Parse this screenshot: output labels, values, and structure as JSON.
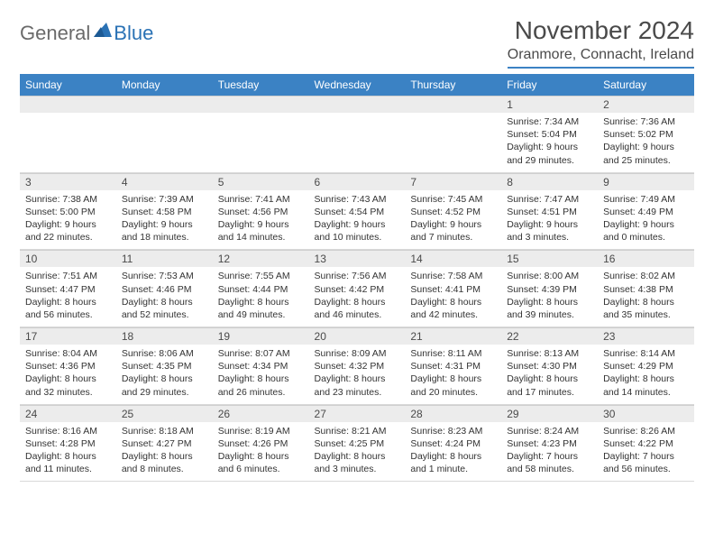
{
  "logo": {
    "general": "General",
    "blue": "Blue"
  },
  "title": "November 2024",
  "location": "Oranmore, Connacht, Ireland",
  "colors": {
    "header_bg": "#3b82c4",
    "header_text": "#ffffff",
    "daynum_bg": "#ececec",
    "body_text": "#333333",
    "title_text": "#4a4a4a",
    "logo_gray": "#6a6a6a",
    "logo_blue": "#2a72b5"
  },
  "weekdays": [
    "Sunday",
    "Monday",
    "Tuesday",
    "Wednesday",
    "Thursday",
    "Friday",
    "Saturday"
  ],
  "weeks": [
    [
      null,
      null,
      null,
      null,
      null,
      {
        "n": "1",
        "sr": "7:34 AM",
        "ss": "5:04 PM",
        "dl": "9 hours and 29 minutes."
      },
      {
        "n": "2",
        "sr": "7:36 AM",
        "ss": "5:02 PM",
        "dl": "9 hours and 25 minutes."
      }
    ],
    [
      {
        "n": "3",
        "sr": "7:38 AM",
        "ss": "5:00 PM",
        "dl": "9 hours and 22 minutes."
      },
      {
        "n": "4",
        "sr": "7:39 AM",
        "ss": "4:58 PM",
        "dl": "9 hours and 18 minutes."
      },
      {
        "n": "5",
        "sr": "7:41 AM",
        "ss": "4:56 PM",
        "dl": "9 hours and 14 minutes."
      },
      {
        "n": "6",
        "sr": "7:43 AM",
        "ss": "4:54 PM",
        "dl": "9 hours and 10 minutes."
      },
      {
        "n": "7",
        "sr": "7:45 AM",
        "ss": "4:52 PM",
        "dl": "9 hours and 7 minutes."
      },
      {
        "n": "8",
        "sr": "7:47 AM",
        "ss": "4:51 PM",
        "dl": "9 hours and 3 minutes."
      },
      {
        "n": "9",
        "sr": "7:49 AM",
        "ss": "4:49 PM",
        "dl": "9 hours and 0 minutes."
      }
    ],
    [
      {
        "n": "10",
        "sr": "7:51 AM",
        "ss": "4:47 PM",
        "dl": "8 hours and 56 minutes."
      },
      {
        "n": "11",
        "sr": "7:53 AM",
        "ss": "4:46 PM",
        "dl": "8 hours and 52 minutes."
      },
      {
        "n": "12",
        "sr": "7:55 AM",
        "ss": "4:44 PM",
        "dl": "8 hours and 49 minutes."
      },
      {
        "n": "13",
        "sr": "7:56 AM",
        "ss": "4:42 PM",
        "dl": "8 hours and 46 minutes."
      },
      {
        "n": "14",
        "sr": "7:58 AM",
        "ss": "4:41 PM",
        "dl": "8 hours and 42 minutes."
      },
      {
        "n": "15",
        "sr": "8:00 AM",
        "ss": "4:39 PM",
        "dl": "8 hours and 39 minutes."
      },
      {
        "n": "16",
        "sr": "8:02 AM",
        "ss": "4:38 PM",
        "dl": "8 hours and 35 minutes."
      }
    ],
    [
      {
        "n": "17",
        "sr": "8:04 AM",
        "ss": "4:36 PM",
        "dl": "8 hours and 32 minutes."
      },
      {
        "n": "18",
        "sr": "8:06 AM",
        "ss": "4:35 PM",
        "dl": "8 hours and 29 minutes."
      },
      {
        "n": "19",
        "sr": "8:07 AM",
        "ss": "4:34 PM",
        "dl": "8 hours and 26 minutes."
      },
      {
        "n": "20",
        "sr": "8:09 AM",
        "ss": "4:32 PM",
        "dl": "8 hours and 23 minutes."
      },
      {
        "n": "21",
        "sr": "8:11 AM",
        "ss": "4:31 PM",
        "dl": "8 hours and 20 minutes."
      },
      {
        "n": "22",
        "sr": "8:13 AM",
        "ss": "4:30 PM",
        "dl": "8 hours and 17 minutes."
      },
      {
        "n": "23",
        "sr": "8:14 AM",
        "ss": "4:29 PM",
        "dl": "8 hours and 14 minutes."
      }
    ],
    [
      {
        "n": "24",
        "sr": "8:16 AM",
        "ss": "4:28 PM",
        "dl": "8 hours and 11 minutes."
      },
      {
        "n": "25",
        "sr": "8:18 AM",
        "ss": "4:27 PM",
        "dl": "8 hours and 8 minutes."
      },
      {
        "n": "26",
        "sr": "8:19 AM",
        "ss": "4:26 PM",
        "dl": "8 hours and 6 minutes."
      },
      {
        "n": "27",
        "sr": "8:21 AM",
        "ss": "4:25 PM",
        "dl": "8 hours and 3 minutes."
      },
      {
        "n": "28",
        "sr": "8:23 AM",
        "ss": "4:24 PM",
        "dl": "8 hours and 1 minute."
      },
      {
        "n": "29",
        "sr": "8:24 AM",
        "ss": "4:23 PM",
        "dl": "7 hours and 58 minutes."
      },
      {
        "n": "30",
        "sr": "8:26 AM",
        "ss": "4:22 PM",
        "dl": "7 hours and 56 minutes."
      }
    ]
  ],
  "labels": {
    "sunrise": "Sunrise: ",
    "sunset": "Sunset: ",
    "daylight": "Daylight: "
  }
}
